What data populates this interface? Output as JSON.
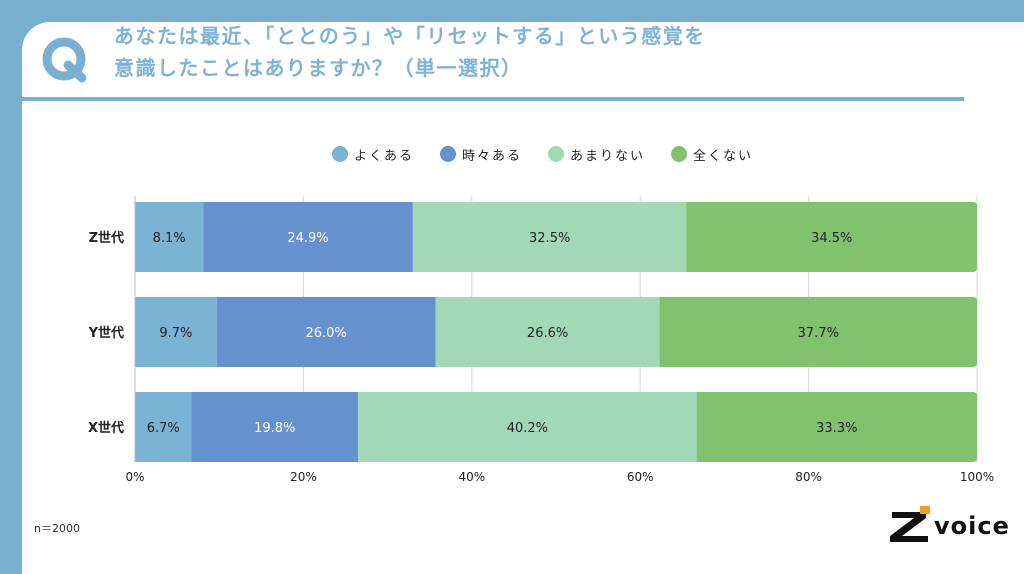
{
  "question": {
    "line1": "あなたは最近、「ととのう」や「リセットする」という感覚を",
    "line2": "意識したことはありますか？（単一選択）"
  },
  "note": "n＝2000",
  "brand": "voice",
  "chart_data": {
    "type": "bar",
    "orientation": "horizontal",
    "stacked": "100%",
    "categories": [
      "Z世代",
      "Y世代",
      "X世代"
    ],
    "series": [
      {
        "name": "よくある",
        "color": "#7ab3d3",
        "values": [
          8.1,
          9.7,
          6.7
        ],
        "labels": [
          "8.1%",
          "9.7%",
          "6.7%"
        ],
        "label_color": "#222222"
      },
      {
        "name": "時々ある",
        "color": "#6691cf",
        "values": [
          24.9,
          26.0,
          19.8
        ],
        "labels": [
          "24.9%",
          "26.0%",
          "19.8%"
        ],
        "label_color": "#ffffff"
      },
      {
        "name": "あまりない",
        "color": "#a3d8b6",
        "values": [
          32.5,
          26.6,
          40.2
        ],
        "labels": [
          "32.5%",
          "26.6%",
          "40.2%"
        ],
        "label_color": "#222222"
      },
      {
        "name": "全くない",
        "color": "#82c26e",
        "values": [
          34.5,
          37.7,
          33.3
        ],
        "labels": [
          "34.5%",
          "37.7%",
          "33.3%"
        ],
        "label_color": "#222222"
      }
    ],
    "xlim": [
      0,
      100
    ],
    "x_ticks": [
      "0%",
      "20%",
      "40%",
      "60%",
      "80%",
      "100%"
    ],
    "grid": true,
    "legend_position": "top"
  }
}
